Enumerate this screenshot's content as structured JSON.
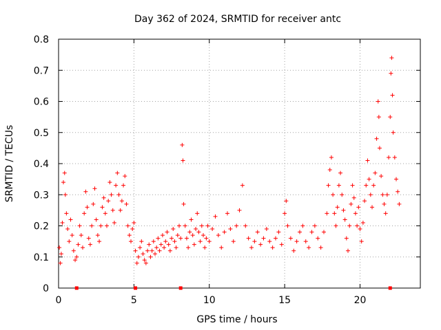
{
  "chart_data": {
    "type": "scatter",
    "title": "Day 362 of 2024, SRMTID for receiver antc",
    "xlabel": "GPS time / hours",
    "ylabel": "SRMTID / TECUs",
    "xlim": [
      0,
      24
    ],
    "ylim": [
      0,
      0.8
    ],
    "xticks": [
      0,
      5,
      10,
      15,
      20
    ],
    "yticks": [
      0,
      0.1,
      0.2,
      0.3,
      0.4,
      0.5,
      0.6,
      0.7,
      0.8
    ],
    "xtick_labels": [
      "0",
      "5",
      "10",
      "15",
      "20"
    ],
    "ytick_labels": [
      "0",
      "0.1",
      "0.2",
      "0.3",
      "0.4",
      "0.5",
      "0.6",
      "0.7",
      "0.8"
    ],
    "grid": true,
    "marker": "plus",
    "color": "#ff0000",
    "series": [
      {
        "name": "SRMTID",
        "points": [
          [
            0.05,
            0.13
          ],
          [
            0.12,
            0.08
          ],
          [
            0.18,
            0.11
          ],
          [
            0.25,
            0.21
          ],
          [
            0.32,
            0.34
          ],
          [
            0.4,
            0.37
          ],
          [
            0.45,
            0.3
          ],
          [
            0.52,
            0.24
          ],
          [
            0.6,
            0.19
          ],
          [
            0.7,
            0.15
          ],
          [
            0.8,
            0.22
          ],
          [
            0.9,
            0.17
          ],
          [
            1.0,
            0.12
          ],
          [
            1.1,
            0.09
          ],
          [
            1.2,
            0.1
          ],
          [
            1.3,
            0.14
          ],
          [
            1.4,
            0.2
          ],
          [
            1.5,
            0.17
          ],
          [
            1.6,
            0.13
          ],
          [
            1.7,
            0.24
          ],
          [
            1.8,
            0.31
          ],
          [
            1.9,
            0.26
          ],
          [
            2.0,
            0.16
          ],
          [
            2.1,
            0.14
          ],
          [
            2.2,
            0.2
          ],
          [
            2.3,
            0.27
          ],
          [
            2.4,
            0.32
          ],
          [
            2.5,
            0.22
          ],
          [
            2.6,
            0.17
          ],
          [
            2.7,
            0.15
          ],
          [
            2.8,
            0.2
          ],
          [
            2.9,
            0.26
          ],
          [
            3.0,
            0.29
          ],
          [
            3.1,
            0.24
          ],
          [
            3.2,
            0.2
          ],
          [
            3.3,
            0.28
          ],
          [
            3.4,
            0.34
          ],
          [
            3.5,
            0.3
          ],
          [
            3.6,
            0.25
          ],
          [
            3.7,
            0.21
          ],
          [
            3.8,
            0.33
          ],
          [
            3.9,
            0.37
          ],
          [
            4.0,
            0.3
          ],
          [
            4.1,
            0.25
          ],
          [
            4.2,
            0.28
          ],
          [
            4.3,
            0.33
          ],
          [
            4.4,
            0.36
          ],
          [
            4.5,
            0.27
          ],
          [
            4.6,
            0.2
          ],
          [
            4.7,
            0.17
          ],
          [
            4.8,
            0.15
          ],
          [
            4.9,
            0.19
          ],
          [
            5.0,
            0.21
          ],
          [
            5.1,
            0.12
          ],
          [
            5.2,
            0.08
          ],
          [
            5.3,
            0.1
          ],
          [
            5.4,
            0.13
          ],
          [
            5.5,
            0.15
          ],
          [
            5.6,
            0.11
          ],
          [
            5.7,
            0.09
          ],
          [
            5.8,
            0.08
          ],
          [
            5.9,
            0.12
          ],
          [
            6.0,
            0.14
          ],
          [
            6.1,
            0.1
          ],
          [
            6.2,
            0.12
          ],
          [
            6.3,
            0.15
          ],
          [
            6.4,
            0.11
          ],
          [
            6.5,
            0.13
          ],
          [
            6.6,
            0.16
          ],
          [
            6.7,
            0.12
          ],
          [
            6.8,
            0.14
          ],
          [
            6.9,
            0.17
          ],
          [
            7.0,
            0.13
          ],
          [
            7.1,
            0.15
          ],
          [
            7.2,
            0.18
          ],
          [
            7.3,
            0.14
          ],
          [
            7.4,
            0.12
          ],
          [
            7.5,
            0.16
          ],
          [
            7.6,
            0.19
          ],
          [
            7.7,
            0.15
          ],
          [
            7.8,
            0.13
          ],
          [
            7.9,
            0.17
          ],
          [
            8.0,
            0.2
          ],
          [
            8.1,
            0.16
          ],
          [
            8.2,
            0.46
          ],
          [
            8.25,
            0.41
          ],
          [
            8.3,
            0.27
          ],
          [
            8.4,
            0.2
          ],
          [
            8.5,
            0.16
          ],
          [
            8.6,
            0.13
          ],
          [
            8.7,
            0.18
          ],
          [
            8.8,
            0.22
          ],
          [
            8.9,
            0.17
          ],
          [
            9.0,
            0.14
          ],
          [
            9.1,
            0.19
          ],
          [
            9.2,
            0.24
          ],
          [
            9.3,
            0.18
          ],
          [
            9.4,
            0.15
          ],
          [
            9.5,
            0.2
          ],
          [
            9.6,
            0.17
          ],
          [
            9.7,
            0.13
          ],
          [
            9.8,
            0.16
          ],
          [
            9.9,
            0.2
          ],
          [
            10.0,
            0.15
          ],
          [
            10.2,
            0.19
          ],
          [
            10.4,
            0.23
          ],
          [
            10.6,
            0.17
          ],
          [
            10.8,
            0.13
          ],
          [
            11.0,
            0.18
          ],
          [
            11.2,
            0.24
          ],
          [
            11.4,
            0.19
          ],
          [
            11.6,
            0.15
          ],
          [
            11.8,
            0.2
          ],
          [
            12.0,
            0.25
          ],
          [
            12.2,
            0.33
          ],
          [
            12.4,
            0.2
          ],
          [
            12.6,
            0.16
          ],
          [
            12.8,
            0.13
          ],
          [
            13.0,
            0.15
          ],
          [
            13.2,
            0.18
          ],
          [
            13.4,
            0.14
          ],
          [
            13.6,
            0.16
          ],
          [
            13.8,
            0.19
          ],
          [
            14.0,
            0.15
          ],
          [
            14.2,
            0.13
          ],
          [
            14.4,
            0.16
          ],
          [
            14.6,
            0.18
          ],
          [
            14.8,
            0.14
          ],
          [
            15.0,
            0.24
          ],
          [
            15.1,
            0.28
          ],
          [
            15.2,
            0.2
          ],
          [
            15.4,
            0.16
          ],
          [
            15.6,
            0.12
          ],
          [
            15.8,
            0.15
          ],
          [
            16.0,
            0.18
          ],
          [
            16.2,
            0.2
          ],
          [
            16.4,
            0.15
          ],
          [
            16.6,
            0.13
          ],
          [
            16.8,
            0.18
          ],
          [
            17.0,
            0.2
          ],
          [
            17.2,
            0.16
          ],
          [
            17.4,
            0.13
          ],
          [
            17.6,
            0.18
          ],
          [
            17.8,
            0.24
          ],
          [
            17.9,
            0.33
          ],
          [
            18.0,
            0.38
          ],
          [
            18.1,
            0.42
          ],
          [
            18.2,
            0.3
          ],
          [
            18.3,
            0.24
          ],
          [
            18.4,
            0.2
          ],
          [
            18.5,
            0.26
          ],
          [
            18.6,
            0.33
          ],
          [
            18.7,
            0.37
          ],
          [
            18.8,
            0.3
          ],
          [
            18.9,
            0.25
          ],
          [
            19.0,
            0.22
          ],
          [
            19.1,
            0.16
          ],
          [
            19.2,
            0.12
          ],
          [
            19.3,
            0.2
          ],
          [
            19.4,
            0.27
          ],
          [
            19.5,
            0.33
          ],
          [
            19.6,
            0.29
          ],
          [
            19.7,
            0.24
          ],
          [
            19.8,
            0.2
          ],
          [
            19.9,
            0.26
          ],
          [
            20.0,
            0.19
          ],
          [
            20.1,
            0.15
          ],
          [
            20.2,
            0.21
          ],
          [
            20.3,
            0.28
          ],
          [
            20.4,
            0.33
          ],
          [
            20.5,
            0.41
          ],
          [
            20.6,
            0.35
          ],
          [
            20.7,
            0.3
          ],
          [
            20.8,
            0.26
          ],
          [
            20.9,
            0.33
          ],
          [
            21.0,
            0.37
          ],
          [
            21.1,
            0.48
          ],
          [
            21.2,
            0.6
          ],
          [
            21.25,
            0.55
          ],
          [
            21.3,
            0.45
          ],
          [
            21.4,
            0.36
          ],
          [
            21.5,
            0.3
          ],
          [
            21.6,
            0.27
          ],
          [
            21.7,
            0.24
          ],
          [
            21.8,
            0.3
          ],
          [
            21.9,
            0.42
          ],
          [
            22.0,
            0.55
          ],
          [
            22.05,
            0.69
          ],
          [
            22.1,
            0.74
          ],
          [
            22.15,
            0.62
          ],
          [
            22.2,
            0.5
          ],
          [
            22.3,
            0.42
          ],
          [
            22.4,
            0.35
          ],
          [
            22.5,
            0.31
          ],
          [
            22.6,
            0.27
          ]
        ]
      }
    ],
    "axis_markers_x": [
      1.2,
      5.1,
      8.1,
      22.0
    ]
  }
}
